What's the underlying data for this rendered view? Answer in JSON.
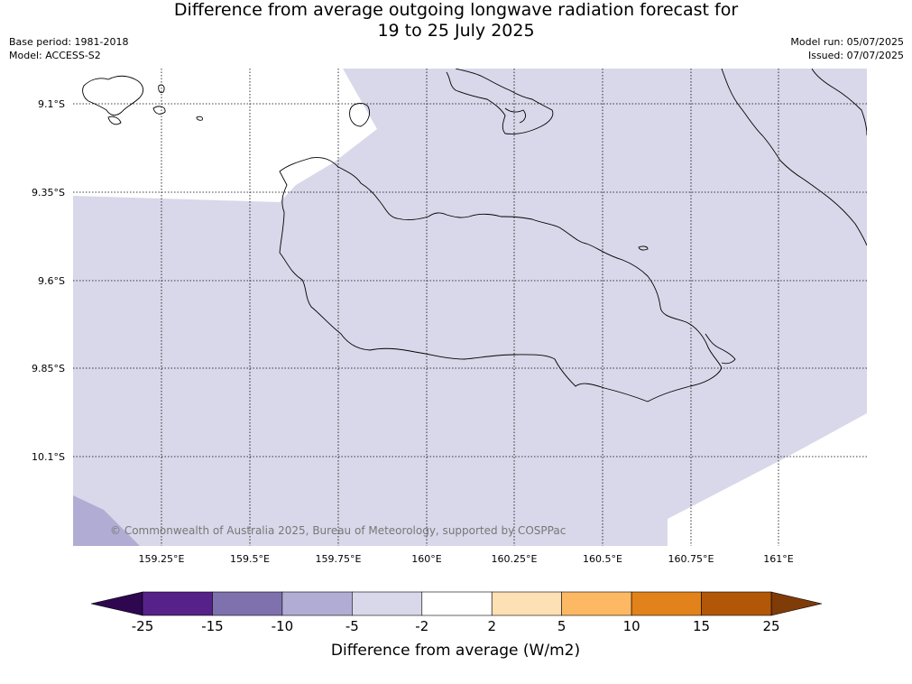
{
  "title": {
    "line1": "Difference from average outgoing longwave radiation forecast for",
    "line2": "19 to 25 July 2025"
  },
  "meta_left": {
    "base_period": "Base period: 1981-2018",
    "model": "Model: ACCESS-S2"
  },
  "meta_right": {
    "model_run": "Model run: 05/07/2025",
    "issued": "Issued: 07/07/2025"
  },
  "map": {
    "lat_labels": [
      "9.1°S",
      "9.35°S",
      "9.6°S",
      "9.85°S",
      "10.1°S"
    ],
    "lon_labels": [
      "159.25°E",
      "159.5°E",
      "159.75°E",
      "160°E",
      "160.25°E",
      "160.5°E",
      "160.75°E",
      "161°E"
    ],
    "copyright": "© Commonwealth of Australia 2025, Bureau of Meteorology, supported by COSPPac",
    "colors": {
      "ocean_minus5_minus2": "#d8d8ea",
      "minus10_minus5": "#b1acd3",
      "neutral": "#ffffff"
    }
  },
  "colorbar": {
    "title": "Difference from average (W/m2)",
    "tick_labels": [
      "-25",
      "-15",
      "-10",
      "-5",
      "-2",
      "2",
      "5",
      "10",
      "15",
      "25"
    ],
    "colors": {
      "under": "#2e0750",
      "seg": [
        "#562189",
        "#7f71ae",
        "#b1acd3",
        "#d8d8ea",
        "#ffffff",
        "#fee0b5",
        "#fdb864",
        "#e2821a",
        "#b25707"
      ],
      "over": "#7f3b08"
    }
  }
}
